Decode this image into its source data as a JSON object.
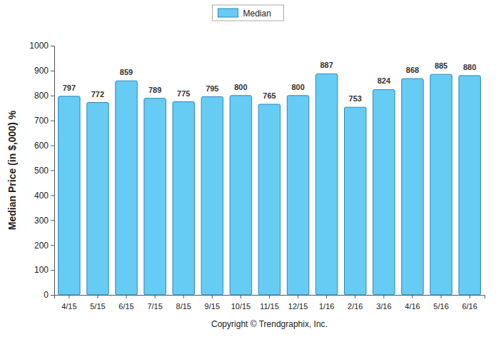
{
  "chart_data": {
    "type": "bar",
    "y_label": "Median Price (in $,000) %",
    "categories": [
      "4/15",
      "5/15",
      "6/15",
      "7/15",
      "8/15",
      "9/15",
      "10/15",
      "11/15",
      "12/15",
      "1/16",
      "2/16",
      "3/16",
      "4/16",
      "5/16",
      "6/16"
    ],
    "series": [
      {
        "name": "Median",
        "color": "#66ccf4",
        "values": [
          797,
          772,
          859,
          789,
          775,
          795,
          800,
          765,
          800,
          887,
          753,
          824,
          868,
          885,
          880
        ]
      }
    ],
    "ylim": [
      0,
      1000
    ],
    "yticks": [
      0,
      100,
      200,
      300,
      400,
      500,
      600,
      700,
      800,
      900,
      1000
    ],
    "grid": false,
    "legend": "top",
    "data_labels": true,
    "annotations": [
      "Copyright © Trendgraphix, Inc."
    ]
  }
}
